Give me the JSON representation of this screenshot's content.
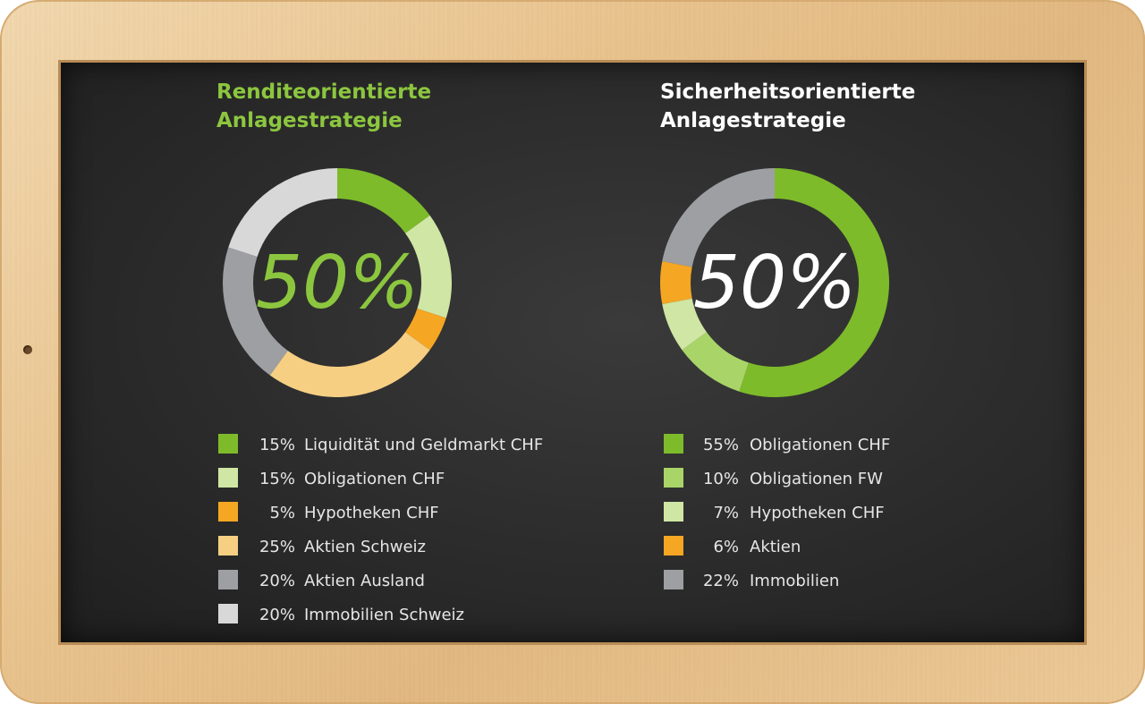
{
  "chart_data": [
    {
      "type": "pie",
      "donut": true,
      "title_lines": [
        "Renditeorientierte",
        "Anlagestrategie"
      ],
      "title_color": "#8cc63f",
      "center_label": "50%",
      "center_color": "#8cc63f",
      "slices": [
        {
          "label": "Liquidität und Geldmarkt CHF",
          "value": 15,
          "value_label": "15%",
          "color": "#7dbb2a"
        },
        {
          "label": "Obligationen CHF",
          "value": 15,
          "value_label": "15%",
          "color": "#cfe6a4"
        },
        {
          "label": "Hypotheken CHF",
          "value": 5,
          "value_label": "5%",
          "color": "#f5a623"
        },
        {
          "label": "Aktien Schweiz",
          "value": 25,
          "value_label": "25%",
          "color": "#f6cf83"
        },
        {
          "label": "Aktien Ausland",
          "value": 20,
          "value_label": "20%",
          "color": "#9d9fa3"
        },
        {
          "label": "Immobilien Schweiz",
          "value": 20,
          "value_label": "20%",
          "color": "#d8d8d8"
        }
      ]
    },
    {
      "type": "pie",
      "donut": true,
      "title_lines": [
        "Sicherheitsorientierte",
        "Anlagestrategie"
      ],
      "title_color": "#ffffff",
      "center_label": "50%",
      "center_color": "#ffffff",
      "slices": [
        {
          "label": "Obligationen CHF",
          "value": 55,
          "value_label": "55%",
          "color": "#7dbb2a"
        },
        {
          "label": "Obligationen FW",
          "value": 10,
          "value_label": "10%",
          "color": "#a9d468"
        },
        {
          "label": "Hypotheken CHF",
          "value": 7,
          "value_label": "7%",
          "color": "#cfe6a4"
        },
        {
          "label": "Aktien",
          "value": 6,
          "value_label": "6%",
          "color": "#f5a623"
        },
        {
          "label": "Immobilien",
          "value": 22,
          "value_label": "22%",
          "color": "#9d9fa3"
        }
      ]
    }
  ]
}
